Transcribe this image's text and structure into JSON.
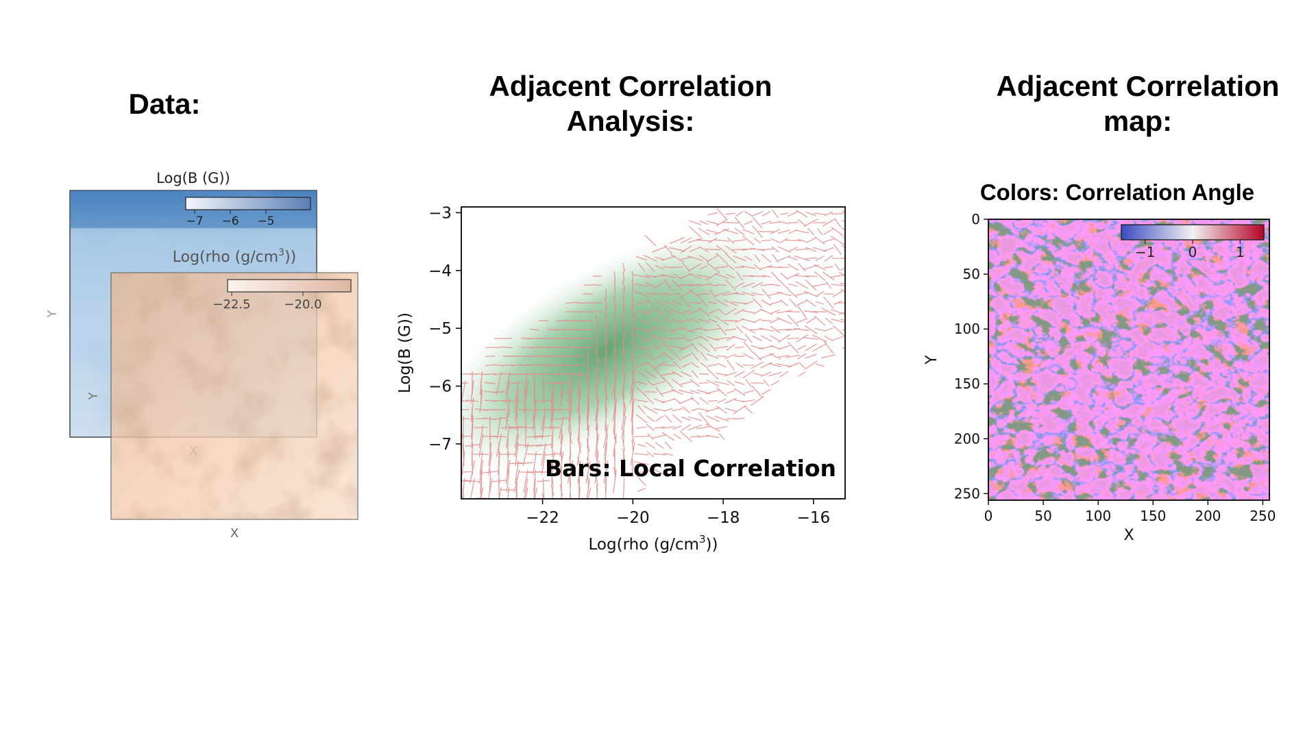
{
  "panels": {
    "data": {
      "heading": "Data:",
      "b_title": "Log(B (G))",
      "b_ticks": [
        "−7",
        "−6",
        "−5"
      ],
      "b_xlabel": "X",
      "b_ylabel": "Y",
      "rho_title_main": "Log(rho (g/cm",
      "rho_title_sup": "3",
      "rho_title_end": "))",
      "rho_ticks": [
        "−22.5",
        "−20.0"
      ],
      "rho_xlabel": "X",
      "rho_ylabel": "Y",
      "colors": {
        "b_dark": "#3d79b8",
        "b_light": "#d8e8f4",
        "rho_light": "#f7d3b6",
        "rho_dark": "#a57151"
      }
    },
    "analysis": {
      "heading_line1": "Adjacent Correlation",
      "heading_line2": "Analysis:",
      "annotation": "Bars: Local Correlation",
      "colors": {
        "bars": "#e58b8b",
        "density": "#5aa16b"
      },
      "chart_data": {
        "type": "scatter",
        "xlabel_main": "Log(rho (g/cm",
        "xlabel_sup": "3",
        "xlabel_end": "))",
        "ylabel": "Log(B (G))",
        "xlim": [
          -23.8,
          -15.3
        ],
        "ylim": [
          -7.95,
          -2.9
        ],
        "x_ticks": [
          {
            "value": -22,
            "label": "−22"
          },
          {
            "value": -20,
            "label": "−20"
          },
          {
            "value": -18,
            "label": "−18"
          },
          {
            "value": -16,
            "label": "−16"
          }
        ],
        "y_ticks": [
          {
            "value": -3,
            "label": "−3"
          },
          {
            "value": -4,
            "label": "−4"
          },
          {
            "value": -5,
            "label": "−5"
          },
          {
            "value": -6,
            "label": "−6"
          },
          {
            "value": -7,
            "label": "−7"
          }
        ]
      }
    },
    "map": {
      "heading_line1": "Adjacent Correlation",
      "heading_line2": "map:",
      "subtitle": "Colors: Correlation Angle",
      "colorbar_ticks": [
        {
          "value": -1,
          "label": "−1"
        },
        {
          "value": 0,
          "label": "0"
        },
        {
          "value": 1,
          "label": "1"
        }
      ],
      "colors": {
        "neg": "#3b4cc0",
        "mid": "#ffffff",
        "pos": "#d0443e"
      },
      "chart_data": {
        "type": "heatmap",
        "xlabel": "X",
        "ylabel": "Y",
        "xlim": [
          0,
          256
        ],
        "ylim": [
          0,
          256
        ],
        "x_ticks": [
          {
            "value": 0,
            "label": "0"
          },
          {
            "value": 50,
            "label": "50"
          },
          {
            "value": 100,
            "label": "100"
          },
          {
            "value": 150,
            "label": "150"
          },
          {
            "value": 200,
            "label": "200"
          },
          {
            "value": 250,
            "label": "250"
          }
        ],
        "y_ticks": [
          {
            "value": 0,
            "label": "0"
          },
          {
            "value": 50,
            "label": "50"
          },
          {
            "value": 100,
            "label": "100"
          },
          {
            "value": 150,
            "label": "150"
          },
          {
            "value": 200,
            "label": "200"
          },
          {
            "value": 250,
            "label": "250"
          }
        ],
        "colorbar_range": [
          -1.5,
          1.5
        ]
      }
    }
  }
}
